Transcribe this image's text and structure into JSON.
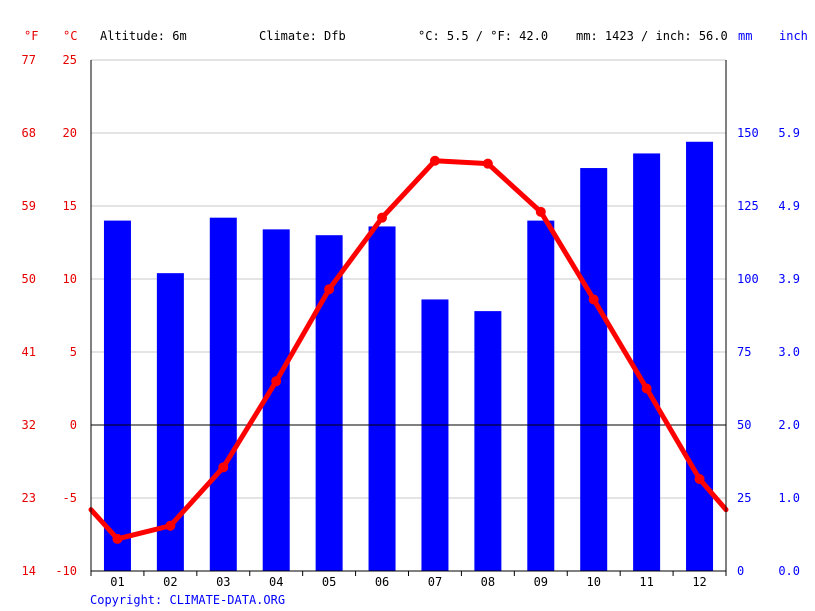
{
  "header": {
    "unit_f": "°F",
    "unit_c": "°C",
    "altitude": "Altitude: 6m",
    "climate": "Climate: Dfb",
    "avg_temp": "°C: 5.5 / °F: 42.0",
    "precip_total": "mm: 1423 / inch: 56.0",
    "unit_mm": "mm",
    "unit_inch": "inch"
  },
  "copyright": "Copyright: CLIMATE-DATA.ORG",
  "chart_data": {
    "type": "bar",
    "categories": [
      "01",
      "02",
      "03",
      "04",
      "05",
      "06",
      "07",
      "08",
      "09",
      "10",
      "11",
      "12"
    ],
    "series": [
      {
        "type": "bar",
        "axis": "mm",
        "values": [
          120,
          102,
          121,
          117,
          115,
          118,
          93,
          89,
          120,
          138,
          143,
          147
        ]
      },
      {
        "type": "line",
        "axis": "celsius",
        "values": [
          -7.8,
          -6.9,
          -2.9,
          3.0,
          9.3,
          14.2,
          18.1,
          17.9,
          14.6,
          8.6,
          2.5,
          -3.7
        ]
      }
    ],
    "line_edge_values": {
      "start": -5.8,
      "end": -5.8
    },
    "y_celsius": {
      "range": [
        -10,
        25
      ],
      "ticks": [
        "25",
        "20",
        "15",
        "10",
        "5",
        "0",
        "-5",
        "-10"
      ]
    },
    "y_fahrenheit": {
      "ticks": [
        "77",
        "68",
        "59",
        "50",
        "41",
        "32",
        "23",
        "14"
      ]
    },
    "y_mm": {
      "range": [
        0,
        175
      ],
      "ticks": [
        "150",
        "125",
        "100",
        "75",
        "50",
        "25",
        "0"
      ]
    },
    "y_inch": {
      "ticks": [
        "5.9",
        "4.9",
        "3.9",
        "3.0",
        "2.0",
        "1.0",
        "0.0"
      ]
    },
    "grid": true,
    "colors": {
      "bars": "#0000ff",
      "line": "#ff0000",
      "temp_axis": "#e60000",
      "precip_axis": "#0000ff",
      "grid": "#c8c8c8"
    }
  }
}
